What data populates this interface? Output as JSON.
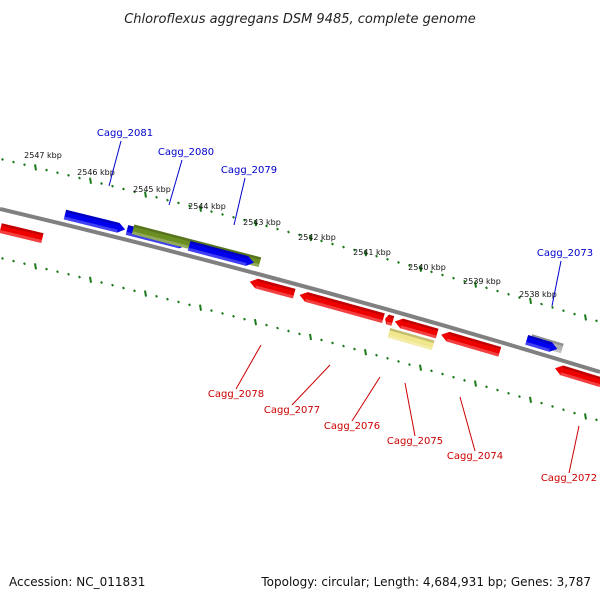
{
  "title": "Chloroflexus aggregans DSM 9485, complete genome",
  "footer": {
    "accession": "Accession: NC_011831",
    "topology": "Topology: circular; Length: 4,684,931 bp; Genes: 3,787"
  },
  "colors": {
    "backbone": "#808080",
    "tick": "#1a7a1a",
    "forward_label": "#0000cc",
    "reverse_label": "#cc0000",
    "blue": "#0000ee",
    "red": "#ee0000",
    "olive": "#6b8e23",
    "yellow": "#f0e68c",
    "gray": "#b0b0b0"
  },
  "scale_labels": [
    "2547 kbp",
    "2546 kbp",
    "2545 kbp",
    "2544 kbp",
    "2543 kbp",
    "2542 kbp",
    "2541 kbp",
    "2540 kbp",
    "2539 kbp",
    "2538 kbp"
  ],
  "genes": [
    {
      "label": "Cagg_2081",
      "strand": "+",
      "color": "blue"
    },
    {
      "label": "Cagg_2080",
      "strand": "+",
      "color": "olive"
    },
    {
      "label": "Cagg_2079",
      "strand": "+",
      "color": "blue"
    },
    {
      "label": "Cagg_2073",
      "strand": "+",
      "color": "gray"
    },
    {
      "label": "Cagg_2078",
      "strand": "-",
      "color": "red"
    },
    {
      "label": "Cagg_2077",
      "strand": "-",
      "color": "red"
    },
    {
      "label": "Cagg_2076",
      "strand": "-",
      "color": "red"
    },
    {
      "label": "Cagg_2075",
      "strand": "-",
      "color": "yellow"
    },
    {
      "label": "Cagg_2074",
      "strand": "-",
      "color": "red"
    },
    {
      "label": "Cagg_2072",
      "strand": "-",
      "color": "red"
    }
  ]
}
